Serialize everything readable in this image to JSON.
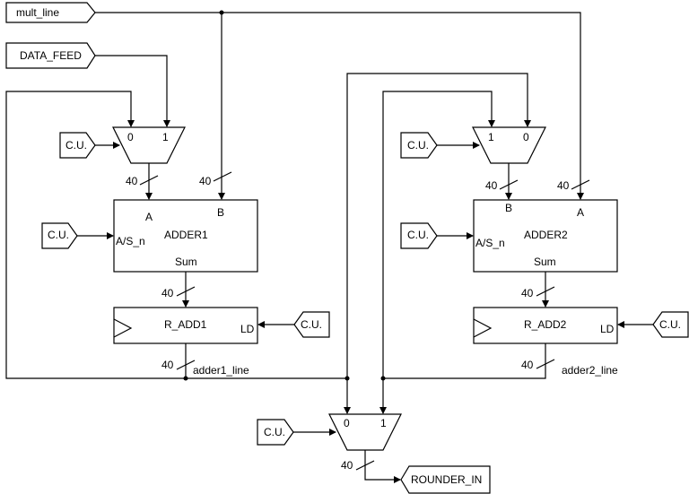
{
  "ports": {
    "mult_line": "mult_line",
    "data_feed": "DATA_FEED",
    "rounder_in": "ROUNDER_IN",
    "cu_label": "C.U."
  },
  "adder1": {
    "title": "ADDER1",
    "a": "A",
    "b": "B",
    "mode": "A/S_n",
    "sum": "Sum"
  },
  "adder2": {
    "title": "ADDER2",
    "a": "A",
    "b": "B",
    "mode": "A/S_n",
    "sum": "Sum"
  },
  "reg1": {
    "title": "R_ADD1",
    "ld": "LD"
  },
  "reg2": {
    "title": "R_ADD2",
    "ld": "LD"
  },
  "mux1": {
    "in0": "0",
    "in1": "1"
  },
  "mux2": {
    "in0": "1",
    "in1": "0"
  },
  "mux3": {
    "in0": "0",
    "in1": "1"
  },
  "bus_width": "40",
  "nets": {
    "adder1_line": "adder1_line",
    "adder2_line": "adder2_line"
  }
}
